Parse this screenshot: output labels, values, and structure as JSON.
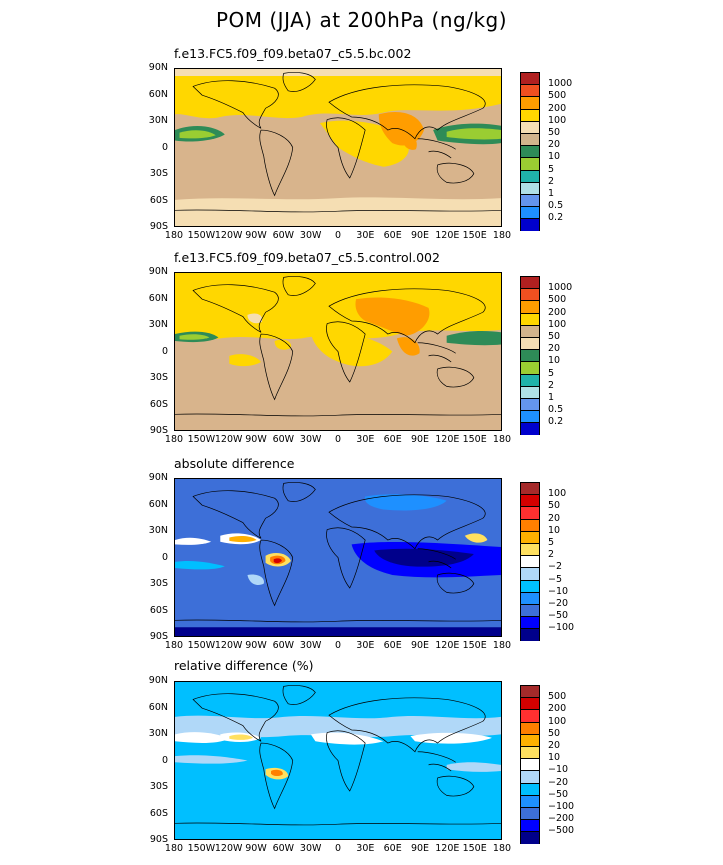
{
  "title": "POM (JJA) at 200hPa (ng/kg)",
  "lat_labels": [
    "90N",
    "60N",
    "30N",
    "0",
    "30S",
    "60S",
    "90S"
  ],
  "lon_labels": [
    "180",
    "150W",
    "120W",
    "90W",
    "60W",
    "30W",
    "0",
    "30E",
    "60E",
    "90E",
    "120E",
    "150E",
    "180"
  ],
  "panels": [
    {
      "title": "f.e13.FC5.f09_f09.beta07_c5.5.bc.002",
      "base_color": "#d8b48c",
      "colorbar": {
        "colors": [
          "#b02020",
          "#f05020",
          "#ff9d00",
          "#ffd700",
          "#f5deb3",
          "#d2b48c",
          "#2e8b57",
          "#9acd32",
          "#20b2aa",
          "#b0e0e6",
          "#6495ed",
          "#1e90ff",
          "#0000cd"
        ],
        "labels": [
          "1000",
          "500",
          "200",
          "100",
          "50",
          "20",
          "10",
          "5",
          "2",
          "1",
          "0.5",
          "0.2"
        ]
      }
    },
    {
      "title": "f.e13.FC5.f09_f09.beta07_c5.5.control.002",
      "base_color": "#d8b48c",
      "colorbar": {
        "colors": [
          "#b02020",
          "#f05020",
          "#ff9d00",
          "#ffd700",
          "#d2b48c",
          "#f5deb3",
          "#2e8b57",
          "#9acd32",
          "#20b2aa",
          "#b0e0e6",
          "#6495ed",
          "#1e90ff",
          "#0000cd"
        ],
        "labels": [
          "1000",
          "500",
          "200",
          "100",
          "50",
          "20",
          "10",
          "5",
          "2",
          "1",
          "0.5",
          "0.2"
        ]
      }
    },
    {
      "title": "absolute difference",
      "base_color": "#3d6fd8",
      "colorbar": {
        "colors": [
          "#a52a2a",
          "#d40000",
          "#ff3030",
          "#ff7f00",
          "#ffb000",
          "#ffe060",
          "#ffffff",
          "#b0d8f8",
          "#00bfff",
          "#1e90ff",
          "#3d6fd8",
          "#0000ff",
          "#00008b"
        ],
        "labels": [
          "100",
          "50",
          "20",
          "10",
          "5",
          "2",
          "−2",
          "−5",
          "−10",
          "−20",
          "−50",
          "−100"
        ]
      }
    },
    {
      "title": "relative difference (%)",
      "base_color": "#00bfff",
      "colorbar": {
        "colors": [
          "#a52a2a",
          "#d40000",
          "#ff3030",
          "#ff7f00",
          "#ffb000",
          "#ffe060",
          "#ffffff",
          "#b0d8f8",
          "#00bfff",
          "#1e90ff",
          "#3d6fd8",
          "#0000ff",
          "#00008b"
        ],
        "labels": [
          "500",
          "200",
          "100",
          "50",
          "20",
          "10",
          "−10",
          "−20",
          "−50",
          "−100",
          "−200",
          "−500"
        ]
      }
    }
  ]
}
